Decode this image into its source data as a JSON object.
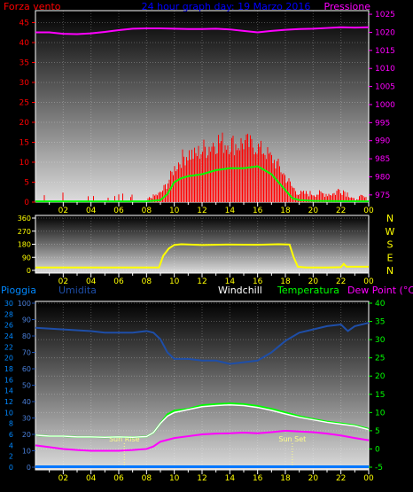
{
  "chart_data": [
    {
      "type": "bar",
      "title": "24 hour graph day: 19 Marzo 2016",
      "left_label": "Forza vento",
      "right_label": "Pressione",
      "x_ticks": [
        "02",
        "04",
        "06",
        "08",
        "10",
        "12",
        "14",
        "16",
        "18",
        "20",
        "22",
        "00"
      ],
      "left_ticks": [
        0,
        5,
        10,
        15,
        20,
        25,
        30,
        35,
        40,
        45
      ],
      "right_ticks": [
        975,
        980,
        985,
        990,
        995,
        1000,
        1005,
        1010,
        1015,
        1020,
        1025
      ],
      "left_range": [
        0,
        48
      ],
      "right_range": [
        973,
        1026
      ],
      "x_range": [
        0,
        24
      ],
      "grid": true,
      "colors": {
        "gust": "#ff0000",
        "wind_avg": "#00ff00",
        "pressure": "#ff00ff",
        "title": "#0000ff"
      },
      "series": [
        {
          "name": "",
          "role": "gust_max",
          "points": [
            [
              0,
              1
            ],
            [
              1,
              1
            ],
            [
              2,
              1
            ],
            [
              3,
              1
            ],
            [
              4,
              1
            ],
            [
              5,
              1
            ],
            [
              6,
              1
            ],
            [
              7,
              1
            ],
            [
              8,
              1
            ],
            [
              8.5,
              2
            ],
            [
              9,
              3
            ],
            [
              9.5,
              6
            ],
            [
              10,
              10
            ],
            [
              10.5,
              13
            ],
            [
              11,
              15
            ],
            [
              11.5,
              14
            ],
            [
              12,
              16
            ],
            [
              12.5,
              17
            ],
            [
              13,
              19
            ],
            [
              13.5,
              18
            ],
            [
              14,
              18
            ],
            [
              14.5,
              17
            ],
            [
              15,
              18
            ],
            [
              15.5,
              17
            ],
            [
              16,
              16
            ],
            [
              16.5,
              15
            ],
            [
              17,
              13
            ],
            [
              17.5,
              11
            ],
            [
              18,
              8
            ],
            [
              18.5,
              5
            ],
            [
              19,
              3
            ],
            [
              19.5,
              3
            ],
            [
              20,
              3
            ],
            [
              20.5,
              3
            ],
            [
              21,
              3
            ],
            [
              21.5,
              3
            ],
            [
              22,
              5
            ],
            [
              22.5,
              3
            ],
            [
              23,
              1
            ],
            [
              23.5,
              2
            ],
            [
              24,
              1
            ]
          ]
        },
        {
          "name": "",
          "role": "wind_avg",
          "points": [
            [
              0,
              0.2
            ],
            [
              8,
              0.2
            ],
            [
              9,
              0.5
            ],
            [
              9.5,
              2
            ],
            [
              10,
              5
            ],
            [
              10.5,
              6
            ],
            [
              11,
              6.5
            ],
            [
              12,
              7
            ],
            [
              13,
              8
            ],
            [
              14,
              8.5
            ],
            [
              15,
              8.5
            ],
            [
              16,
              9
            ],
            [
              17,
              7
            ],
            [
              17.5,
              5
            ],
            [
              18,
              3
            ],
            [
              18.5,
              1
            ],
            [
              19,
              0.5
            ],
            [
              20,
              0.3
            ],
            [
              24,
              0.2
            ]
          ]
        },
        {
          "name": "",
          "role": "pressure",
          "points": [
            [
              0,
              1020
            ],
            [
              1,
              1020
            ],
            [
              2,
              1019.6
            ],
            [
              3,
              1019.5
            ],
            [
              4,
              1019.7
            ],
            [
              5,
              1020.1
            ],
            [
              6,
              1020.6
            ],
            [
              7,
              1021
            ],
            [
              8,
              1021.1
            ],
            [
              9,
              1021.1
            ],
            [
              10,
              1021
            ],
            [
              11,
              1020.9
            ],
            [
              12,
              1020.9
            ],
            [
              13,
              1021
            ],
            [
              14,
              1020.8
            ],
            [
              15,
              1020.4
            ],
            [
              16,
              1020
            ],
            [
              17,
              1020.4
            ],
            [
              18,
              1020.7
            ],
            [
              19,
              1020.9
            ],
            [
              20,
              1021
            ],
            [
              21,
              1021.2
            ],
            [
              22,
              1021.4
            ],
            [
              23,
              1021.3
            ],
            [
              24,
              1021.4
            ]
          ]
        }
      ]
    },
    {
      "type": "line",
      "left_ticks": [
        0,
        90,
        180,
        270,
        360
      ],
      "right_ticks": [
        "N",
        "W",
        "S",
        "E",
        "N"
      ],
      "left_range": [
        0,
        360
      ],
      "x_range": [
        0,
        24
      ],
      "x_ticks": [
        "02",
        "04",
        "06",
        "08",
        "10",
        "12",
        "14",
        "16",
        "18",
        "20",
        "22",
        "00"
      ],
      "grid": true,
      "colors": {
        "direction": "#ffff00"
      },
      "series": [
        {
          "name": "",
          "role": "wind_direction",
          "points": [
            [
              0,
              20
            ],
            [
              8.9,
              20
            ],
            [
              9.2,
              100
            ],
            [
              9.6,
              150
            ],
            [
              10,
              175
            ],
            [
              10.5,
              180
            ],
            [
              12,
              175
            ],
            [
              14,
              178
            ],
            [
              16,
              176
            ],
            [
              17.5,
              180
            ],
            [
              18.3,
              178
            ],
            [
              18.6,
              90
            ],
            [
              18.9,
              25
            ],
            [
              19.5,
              20
            ],
            [
              21,
              20
            ],
            [
              22,
              22
            ],
            [
              22.2,
              45
            ],
            [
              22.4,
              25
            ],
            [
              24,
              25
            ]
          ]
        }
      ]
    },
    {
      "type": "line",
      "labels": {
        "rain": "Pioggia",
        "humidity": "Umidita",
        "windchill": "Windchill",
        "temperature": "Temperatura",
        "dewpoint": "Dew Point (°C)"
      },
      "annotations": [
        {
          "text": "Sun Rise",
          "x": 6.4
        },
        {
          "text": "Sun Set",
          "x": 18.5
        }
      ],
      "left_ticks_rain": [
        0,
        2,
        4,
        6,
        8,
        10,
        12,
        14,
        16,
        18,
        20,
        22,
        24,
        26,
        28,
        30
      ],
      "left_ticks_humidity": [
        0,
        10,
        20,
        30,
        40,
        50,
        60,
        70,
        80,
        90,
        100
      ],
      "right_ticks": [
        -5,
        0,
        5,
        10,
        15,
        20,
        25,
        30,
        35,
        40
      ],
      "temp_range": [
        -5,
        40
      ],
      "humidity_range": [
        0,
        100
      ],
      "x_range": [
        0,
        24
      ],
      "x_ticks": [
        "02",
        "04",
        "06",
        "08",
        "10",
        "12",
        "14",
        "16",
        "18",
        "20",
        "22",
        "00"
      ],
      "grid": true,
      "colors": {
        "rain": "#0077ff",
        "humidity": "#1e4ea8",
        "windchill": "#ffffff",
        "temperature": "#00ff00",
        "dewpoint": "#ff00ff",
        "sun": "#ffff88"
      },
      "series": [
        {
          "name": "",
          "role": "humidity",
          "points": [
            [
              0,
              85
            ],
            [
              2,
              84
            ],
            [
              4,
              83
            ],
            [
              5,
              82
            ],
            [
              6,
              82
            ],
            [
              7,
              82
            ],
            [
              8,
              83
            ],
            [
              8.5,
              82
            ],
            [
              9,
              78
            ],
            [
              9.5,
              70
            ],
            [
              10,
              66
            ],
            [
              11,
              66
            ],
            [
              12,
              65
            ],
            [
              13,
              65
            ],
            [
              14,
              63
            ],
            [
              15,
              64
            ],
            [
              16,
              65
            ],
            [
              17,
              70
            ],
            [
              18,
              77
            ],
            [
              19,
              82
            ],
            [
              20,
              84
            ],
            [
              21,
              86
            ],
            [
              22,
              87
            ],
            [
              22.5,
              83
            ],
            [
              23,
              86
            ],
            [
              24,
              88
            ]
          ]
        },
        {
          "name": "",
          "role": "temperature",
          "points": [
            [
              0,
              3.8
            ],
            [
              1,
              3.5
            ],
            [
              2,
              3.5
            ],
            [
              3,
              3.3
            ],
            [
              4,
              3.3
            ],
            [
              5,
              3.2
            ],
            [
              6,
              3.3
            ],
            [
              7,
              3.2
            ],
            [
              8,
              3.4
            ],
            [
              8.5,
              4.5
            ],
            [
              9,
              7
            ],
            [
              9.5,
              9.5
            ],
            [
              10,
              10.5
            ],
            [
              11,
              11
            ],
            [
              12,
              12
            ],
            [
              13,
              12.3
            ],
            [
              14,
              12.5
            ],
            [
              15,
              12.3
            ],
            [
              16,
              11.8
            ],
            [
              17,
              11
            ],
            [
              18,
              10
            ],
            [
              19,
              9
            ],
            [
              20,
              8.2
            ],
            [
              21,
              7.5
            ],
            [
              22,
              7
            ],
            [
              23,
              6.5
            ],
            [
              24,
              5.5
            ]
          ]
        },
        {
          "name": "",
          "role": "windchill",
          "points": [
            [
              0,
              3.8
            ],
            [
              1,
              3.5
            ],
            [
              2,
              3.5
            ],
            [
              3,
              3.3
            ],
            [
              4,
              3.3
            ],
            [
              5,
              3.2
            ],
            [
              6,
              3.3
            ],
            [
              7,
              3.2
            ],
            [
              8,
              3.4
            ],
            [
              8.5,
              4.5
            ],
            [
              9,
              7
            ],
            [
              9.5,
              9
            ],
            [
              10,
              10
            ],
            [
              11,
              10.8
            ],
            [
              12,
              11.6
            ],
            [
              13,
              11.9
            ],
            [
              14,
              12.1
            ],
            [
              15,
              11.9
            ],
            [
              16,
              11.4
            ],
            [
              17,
              10.6
            ],
            [
              18,
              9.6
            ],
            [
              19,
              8.7
            ],
            [
              20,
              8
            ],
            [
              21,
              7.3
            ],
            [
              22,
              6.8
            ],
            [
              23,
              6.3
            ],
            [
              24,
              5.3
            ]
          ]
        },
        {
          "name": "",
          "role": "dewpoint",
          "points": [
            [
              0,
              1
            ],
            [
              1,
              0.5
            ],
            [
              2,
              0
            ],
            [
              3,
              -0.3
            ],
            [
              4,
              -0.5
            ],
            [
              5,
              -0.5
            ],
            [
              6,
              -0.5
            ],
            [
              7,
              -0.3
            ],
            [
              8,
              0
            ],
            [
              8.5,
              0.7
            ],
            [
              9,
              2
            ],
            [
              10,
              3
            ],
            [
              11,
              3.5
            ],
            [
              12,
              4
            ],
            [
              13,
              4.2
            ],
            [
              14,
              4.3
            ],
            [
              15,
              4.5
            ],
            [
              16,
              4.3
            ],
            [
              17,
              4.6
            ],
            [
              18,
              5
            ],
            [
              19,
              4.8
            ],
            [
              20,
              4.6
            ],
            [
              21,
              4.2
            ],
            [
              22,
              3.7
            ],
            [
              23,
              3
            ],
            [
              24,
              2.4
            ]
          ]
        },
        {
          "name": "",
          "role": "rain",
          "points": [
            [
              0,
              0
            ],
            [
              24,
              0
            ]
          ]
        }
      ]
    }
  ]
}
